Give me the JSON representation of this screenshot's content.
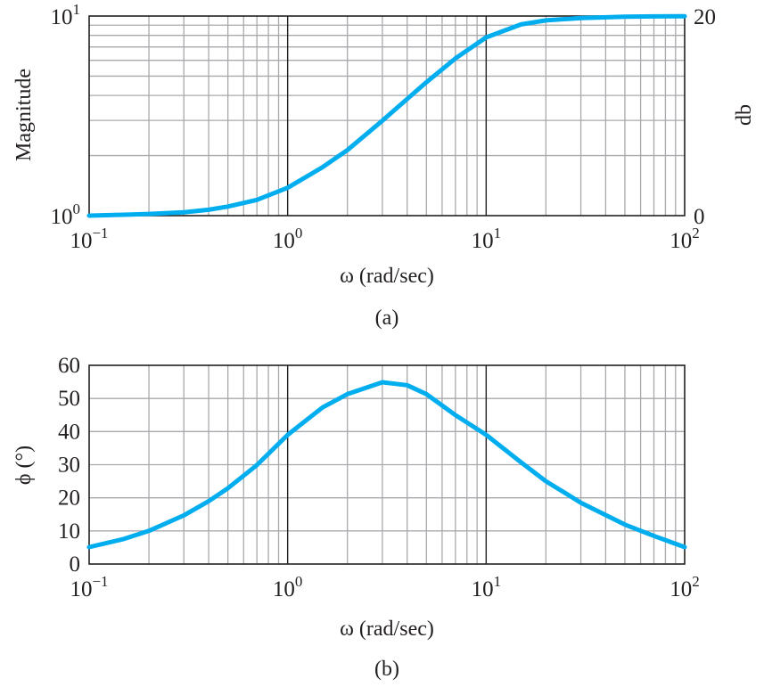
{
  "colors": {
    "curve": "#00aeef",
    "grid": "#a7a9ac",
    "axis": "#231f20"
  },
  "chart_data": [
    {
      "type": "line",
      "caption": "(a)",
      "xlabel": "ω (rad/sec)",
      "ylabel": "Magnitude",
      "y2label": "db",
      "x_scale": "log",
      "y_scale": "log",
      "xlim": [
        0.1,
        100
      ],
      "ylim": [
        1,
        10
      ],
      "x_ticks": [
        {
          "base": "10",
          "exp": "−1"
        },
        {
          "base": "10",
          "exp": "0"
        },
        {
          "base": "10",
          "exp": "1"
        },
        {
          "base": "10",
          "exp": "2"
        }
      ],
      "y_ticks": [
        {
          "base": "10",
          "exp": "0"
        },
        {
          "base": "10",
          "exp": "1"
        }
      ],
      "y2_ticks": [
        "0",
        "20"
      ],
      "grid": true,
      "series": [
        {
          "x": [
            0.1,
            0.15,
            0.2,
            0.3,
            0.4,
            0.5,
            0.7,
            1,
            1.5,
            2,
            3,
            4,
            5,
            7,
            10,
            15,
            20,
            30,
            50,
            70,
            100
          ],
          "y": [
            1.0,
            1.01,
            1.02,
            1.04,
            1.07,
            1.11,
            1.2,
            1.38,
            1.75,
            2.13,
            2.99,
            3.84,
            4.66,
            6.13,
            7.81,
            9.08,
            9.51,
            9.78,
            9.92,
            9.96,
            9.98
          ]
        }
      ]
    },
    {
      "type": "line",
      "caption": "(b)",
      "xlabel": "ω (rad/sec)",
      "ylabel": "ϕ (°)",
      "x_scale": "log",
      "xlim": [
        0.1,
        100
      ],
      "ylim": [
        0,
        60
      ],
      "x_ticks": [
        {
          "base": "10",
          "exp": "−1"
        },
        {
          "base": "10",
          "exp": "0"
        },
        {
          "base": "10",
          "exp": "1"
        },
        {
          "base": "10",
          "exp": "2"
        }
      ],
      "y_ticks": [
        "0",
        "10",
        "20",
        "30",
        "40",
        "50",
        "60"
      ],
      "grid": true,
      "series": [
        {
          "x": [
            0.1,
            0.15,
            0.2,
            0.3,
            0.4,
            0.5,
            0.7,
            1,
            1.5,
            2,
            3,
            4,
            5,
            7,
            10,
            15,
            20,
            30,
            50,
            70,
            100
          ],
          "y": [
            5.1,
            7.6,
            10.0,
            14.7,
            19.0,
            22.9,
            29.9,
            39.0,
            47.3,
            51.3,
            54.9,
            54.0,
            51.3,
            45.0,
            39.0,
            30.7,
            25.0,
            18.5,
            11.9,
            8.5,
            5.1
          ]
        }
      ]
    }
  ]
}
